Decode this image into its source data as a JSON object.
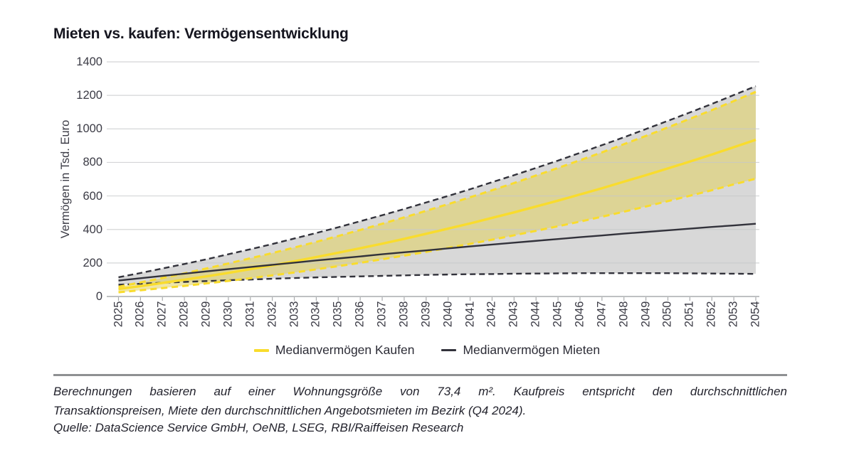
{
  "title": "Mieten vs. kaufen: Vermögensentwicklung",
  "footnote": {
    "lines": [
      "Berechnungen basieren auf einer Wohnungsgröße von 73,4 m². Kaufpreis entspricht den durchschnittlichen",
      "Transaktionspreisen, Miete den durchschnittlichen Angebotsmieten im Bezirk (Q4 2024)."
    ]
  },
  "source": "Quelle: DataScience Service GmbH, OeNB, LSEG, RBI/Raiffeisen Research",
  "colors": {
    "accent_yellow": "#f9dc2d",
    "dark_line": "#32323b",
    "grey_band": "#d8d8d8",
    "yellow_band": "rgba(225,210,95,0.55)",
    "gridline": "#c6c8ca",
    "axis": "#a9abad",
    "text_dark": "#15151f",
    "text_label": "#3b3b45"
  },
  "chart_data": {
    "type": "line",
    "title": "Mieten vs. kaufen: Vermögensentwicklung",
    "xlabel": "",
    "ylabel": "Vermögen in Tsd. Euro",
    "ylim": [
      0,
      1400
    ],
    "yticks": [
      0,
      200,
      400,
      600,
      800,
      1000,
      1200,
      1400
    ],
    "grid": "horizontal",
    "legend_position": "bottom",
    "x": [
      2025,
      2026,
      2027,
      2028,
      2029,
      2030,
      2031,
      2032,
      2033,
      2034,
      2035,
      2036,
      2037,
      2038,
      2039,
      2040,
      2041,
      2042,
      2043,
      2044,
      2045,
      2046,
      2047,
      2048,
      2049,
      2050,
      2051,
      2052,
      2053,
      2054
    ],
    "series": [
      {
        "key": "kaufen_median",
        "name": "Medianvermögen Kaufen",
        "style": "solid",
        "color": "#f9dc2d",
        "width": 3.4,
        "values": [
          45,
          62,
          81,
          100,
          120,
          141,
          163,
          186,
          210,
          235,
          261,
          288,
          315,
          344,
          374,
          405,
          436,
          469,
          502,
          537,
          572,
          609,
          646,
          685,
          724,
          764,
          805,
          847,
          891,
          935
        ]
      },
      {
        "key": "mieten_median",
        "name": "Medianvermögen Mieten",
        "style": "solid",
        "color": "#32323b",
        "width": 2.4,
        "values": [
          95,
          109,
          123,
          136,
          150,
          163,
          176,
          189,
          202,
          215,
          227,
          239,
          252,
          264,
          275,
          287,
          299,
          310,
          321,
          332,
          343,
          354,
          364,
          375,
          385,
          395,
          405,
          415,
          424,
          434
        ]
      },
      {
        "key": "kaufen_upper",
        "name": "Kaufen Band obere Grenze",
        "style": "dashed",
        "color": "#f9dc2d",
        "width": 3,
        "values": [
          58,
          84,
          110,
          138,
          167,
          197,
          228,
          259,
          292,
          326,
          361,
          397,
          434,
          472,
          511,
          551,
          592,
          634,
          677,
          722,
          767,
          813,
          860,
          909,
          958,
          1009,
          1060,
          1112,
          1166,
          1221
        ]
      },
      {
        "key": "kaufen_lower",
        "name": "Kaufen Band untere Grenze",
        "style": "dashed",
        "color": "#f9dc2d",
        "width": 3,
        "values": [
          25,
          37,
          50,
          63,
          78,
          93,
          109,
          126,
          143,
          162,
          181,
          201,
          222,
          244,
          266,
          290,
          314,
          339,
          365,
          392,
          419,
          447,
          476,
          506,
          537,
          569,
          601,
          634,
          669,
          703
        ]
      },
      {
        "key": "mieten_upper",
        "name": "Mieten Band obere Grenze",
        "style": "dashed",
        "color": "#32323b",
        "width": 2.4,
        "values": [
          115,
          140,
          167,
          194,
          222,
          252,
          282,
          313,
          346,
          379,
          413,
          449,
          485,
          522,
          561,
          600,
          640,
          682,
          724,
          767,
          811,
          857,
          903,
          950,
          999,
          1048,
          1098,
          1149,
          1202,
          1255
        ]
      },
      {
        "key": "mieten_lower",
        "name": "Mieten Band untere Grenze",
        "style": "dashed",
        "color": "#32323b",
        "width": 2.4,
        "values": [
          70,
          76,
          82,
          87,
          92,
          97,
          101,
          106,
          110,
          114,
          117,
          120,
          123,
          126,
          129,
          131,
          133,
          134,
          136,
          137,
          138,
          139,
          139,
          139,
          139,
          139,
          138,
          137,
          136,
          135
        ]
      }
    ],
    "bands": [
      {
        "name": "mieten-konfidenzband",
        "upper": "mieten_upper",
        "lower": "mieten_lower",
        "fill": "#d8d8d8"
      },
      {
        "name": "kaufen-konfidenzband",
        "upper": "kaufen_upper",
        "lower": "kaufen_lower",
        "fill": "rgba(225,210,95,0.55)"
      }
    ],
    "legend": [
      {
        "label": "Medianvermögen Kaufen",
        "color": "#f9dc2d",
        "thickness": 4
      },
      {
        "label": "Medianvermögen Mieten",
        "color": "#32323b",
        "thickness": 2.5
      }
    ]
  }
}
